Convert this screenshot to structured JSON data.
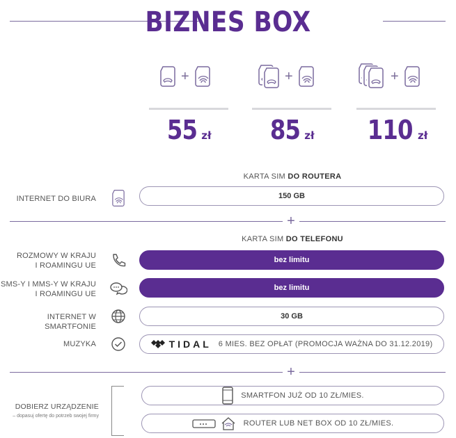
{
  "header": {
    "title": "BIZNES BOX"
  },
  "plans": [
    {
      "price": "55",
      "currency": "zł",
      "sim_count": 1
    },
    {
      "price": "85",
      "currency": "zł",
      "sim_count": 2
    },
    {
      "price": "110",
      "currency": "zł",
      "sim_count": 3
    }
  ],
  "plus_symbol": "+",
  "router_section": {
    "heading_prefix": "KARTA SIM ",
    "heading_bold": "DO ROUTERA",
    "rows": [
      {
        "label": "INTERNET DO BIURA",
        "value": "150 GB",
        "icon": "router-sim-icon"
      }
    ]
  },
  "phone_section": {
    "heading_prefix": "KARTA SIM ",
    "heading_bold": "DO TELEFONU",
    "rows": [
      {
        "label_line1": "ROZMOWY W KRAJU",
        "label_line2": "I ROAMINGU UE",
        "value": "bez limitu",
        "icon": "phone-icon"
      },
      {
        "label_line1": "SMS-Y I MMS-Y W KRAJU",
        "label_line2": "I ROAMINGU UE",
        "value": "bez limitu",
        "icon": "chat-bubbles-icon"
      },
      {
        "label": "INTERNET W SMARTFONIE",
        "value": "30 GB",
        "icon": "globe-icon"
      },
      {
        "label": "MUZYKA",
        "brand": "TIDAL",
        "value": "6 MIES. BEZ OPŁAT (PROMOCJA WAŻNA DO 31.12.2019)",
        "icon": "check-circle-icon"
      }
    ]
  },
  "devices": {
    "label": "DOBIERZ URZĄDZENIE",
    "sublabel": "– dopasuj ofertę do potrzeb swojej firmy",
    "options": [
      {
        "text": "SMARTFON JUŻ OD 10 ZŁ/MIES.",
        "icon": "smartphone-icon"
      },
      {
        "text": "ROUTER LUB NET BOX OD 10 ZŁ/MIES.",
        "icon": "router-device-icon"
      }
    ]
  },
  "colors": {
    "brand": "#5a2d91",
    "line": "#7a6a9e",
    "outline": "#9c94b4"
  }
}
